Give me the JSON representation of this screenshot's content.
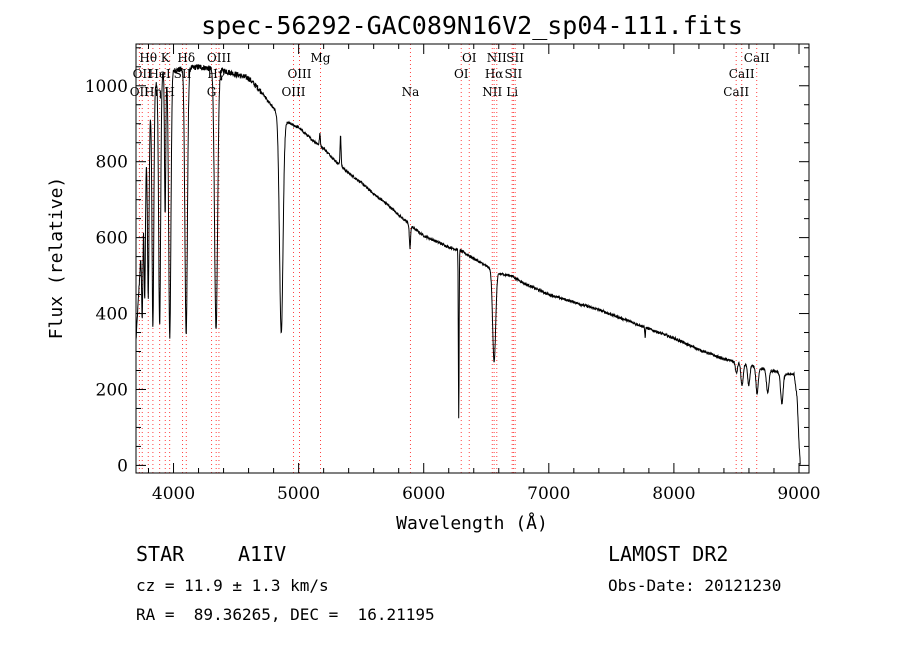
{
  "chart_data": {
    "type": "line",
    "title": "spec-56292-GAC089N16V2_sp04-111.fits",
    "xlabel": "Wavelength (Å)",
    "ylabel": "Flux (relative)",
    "xlim": [
      3700,
      9080
    ],
    "ylim": [
      -20,
      1110
    ],
    "xticks": [
      4000,
      5000,
      6000,
      7000,
      8000,
      9000
    ],
    "yticks": [
      0,
      200,
      400,
      600,
      800,
      1000
    ],
    "x_minor_step": 200,
    "y_minor_step": 50,
    "grid": false,
    "line_color": "#000000",
    "marker_color": "#ff4040",
    "spectrum": {
      "continuum": [
        [
          3700,
          330
        ],
        [
          3740,
          560
        ],
        [
          3780,
          800
        ],
        [
          3830,
          980
        ],
        [
          3900,
          1035
        ],
        [
          4000,
          1040
        ],
        [
          4100,
          1045
        ],
        [
          4200,
          1050
        ],
        [
          4300,
          1045
        ],
        [
          4400,
          1040
        ],
        [
          4500,
          1030
        ],
        [
          4600,
          1020
        ],
        [
          4700,
          985
        ],
        [
          4800,
          940
        ],
        [
          4900,
          905
        ],
        [
          5000,
          890
        ],
        [
          5100,
          860
        ],
        [
          5200,
          835
        ],
        [
          5300,
          800
        ],
        [
          5400,
          770
        ],
        [
          5500,
          745
        ],
        [
          5600,
          715
        ],
        [
          5700,
          690
        ],
        [
          5800,
          660
        ],
        [
          5900,
          630
        ],
        [
          6000,
          605
        ],
        [
          6100,
          590
        ],
        [
          6200,
          575
        ],
        [
          6300,
          565
        ],
        [
          6400,
          545
        ],
        [
          6500,
          525
        ],
        [
          6600,
          505
        ],
        [
          6700,
          500
        ],
        [
          6800,
          480
        ],
        [
          6900,
          465
        ],
        [
          7000,
          450
        ],
        [
          7200,
          430
        ],
        [
          7400,
          410
        ],
        [
          7600,
          385
        ],
        [
          7800,
          360
        ],
        [
          8000,
          335
        ],
        [
          8200,
          305
        ],
        [
          8400,
          280
        ],
        [
          8600,
          265
        ],
        [
          8700,
          255
        ],
        [
          8800,
          248
        ],
        [
          8900,
          240
        ],
        [
          8960,
          240
        ],
        [
          8985,
          180
        ],
        [
          9000,
          60
        ],
        [
          9010,
          5
        ]
      ],
      "absorption": [
        {
          "x": 3750,
          "depth": 230,
          "width": 5
        },
        {
          "x": 3770,
          "depth": 300,
          "width": 5
        },
        {
          "x": 3798,
          "depth": 420,
          "width": 6
        },
        {
          "x": 3835,
          "depth": 620,
          "width": 7
        },
        {
          "x": 3889,
          "depth": 660,
          "width": 8
        },
        {
          "x": 3933,
          "depth": 380,
          "width": 5
        },
        {
          "x": 3970,
          "depth": 700,
          "width": 9
        },
        {
          "x": 4101,
          "depth": 700,
          "width": 10
        },
        {
          "x": 4340,
          "depth": 690,
          "width": 12
        },
        {
          "x": 4861,
          "depth": 570,
          "width": 14
        },
        {
          "x": 5890,
          "depth": 60,
          "width": 5
        },
        {
          "x": 6280,
          "depth": 440,
          "width": 3
        },
        {
          "x": 6563,
          "depth": 240,
          "width": 12
        },
        {
          "x": 7770,
          "depth": 25,
          "width": 3
        },
        {
          "x": 8500,
          "depth": 30,
          "width": 8
        },
        {
          "x": 8545,
          "depth": 60,
          "width": 9
        },
        {
          "x": 8598,
          "depth": 55,
          "width": 9
        },
        {
          "x": 8665,
          "depth": 70,
          "width": 9
        },
        {
          "x": 8750,
          "depth": 60,
          "width": 10
        },
        {
          "x": 8863,
          "depth": 80,
          "width": 10
        }
      ],
      "emission": [
        {
          "x": 5335,
          "height": 80,
          "width": 4
        },
        {
          "x": 5170,
          "height": 30,
          "width": 4
        }
      ],
      "noise_amplitude": 7
    },
    "line_markers": [
      {
        "x": 3727,
        "labels": [
          {
            "text": "OII",
            "row": 3
          }
        ]
      },
      {
        "x": 3750,
        "labels": [
          {
            "text": "OII",
            "row": 2
          }
        ]
      },
      {
        "x": 3798,
        "labels": [
          {
            "text": "Hθ",
            "row": 1
          }
        ]
      },
      {
        "x": 3835,
        "labels": [
          {
            "text": "Hη",
            "row": 3
          }
        ]
      },
      {
        "x": 3889,
        "labels": [
          {
            "text": "HeI",
            "row": 2
          }
        ]
      },
      {
        "x": 3934,
        "labels": [
          {
            "text": "K",
            "row": 1
          }
        ]
      },
      {
        "x": 3969,
        "labels": [
          {
            "text": "H",
            "row": 3
          }
        ]
      },
      {
        "x": 4072,
        "labels": [
          {
            "text": "SII",
            "row": 2
          }
        ]
      },
      {
        "x": 4102,
        "labels": [
          {
            "text": "Hδ",
            "row": 1
          }
        ]
      },
      {
        "x": 4304,
        "labels": [
          {
            "text": "G",
            "row": 3
          }
        ]
      },
      {
        "x": 4341,
        "labels": [
          {
            "text": "Hγ",
            "row": 2
          }
        ]
      },
      {
        "x": 4363,
        "labels": [
          {
            "text": "OIII",
            "row": 1
          }
        ]
      },
      {
        "x": 4959,
        "labels": [
          {
            "text": "OIII",
            "row": 3
          }
        ]
      },
      {
        "x": 5007,
        "labels": [
          {
            "text": "OIII",
            "row": 2
          }
        ]
      },
      {
        "x": 5175,
        "labels": [
          {
            "text": "Mg",
            "row": 1
          }
        ]
      },
      {
        "x": 5894,
        "labels": [
          {
            "text": "Na",
            "row": 3
          }
        ]
      },
      {
        "x": 6300,
        "labels": [
          {
            "text": "OI",
            "row": 2
          }
        ]
      },
      {
        "x": 6364,
        "labels": [
          {
            "text": "OI",
            "row": 1
          }
        ]
      },
      {
        "x": 6548,
        "labels": [
          {
            "text": "NII",
            "row": 3
          }
        ]
      },
      {
        "x": 6563,
        "labels": [
          {
            "text": "Hα",
            "row": 2
          }
        ]
      },
      {
        "x": 6584,
        "labels": [
          {
            "text": "NII",
            "row": 1
          }
        ]
      },
      {
        "x": 6707,
        "labels": [
          {
            "text": "Li",
            "row": 3
          }
        ]
      },
      {
        "x": 6717,
        "labels": [
          {
            "text": "SII",
            "row": 2
          }
        ]
      },
      {
        "x": 6731,
        "labels": [
          {
            "text": "SII",
            "row": 1
          }
        ]
      },
      {
        "x": 8498,
        "labels": [
          {
            "text": "CaII",
            "row": 3
          }
        ]
      },
      {
        "x": 8542,
        "labels": [
          {
            "text": "CaII",
            "row": 2
          }
        ]
      },
      {
        "x": 8662,
        "labels": [
          {
            "text": "CaII",
            "row": 1
          }
        ]
      }
    ]
  },
  "info": {
    "class": "STAR",
    "subclass": "A1IV",
    "survey": "LAMOST DR2",
    "cz": "cz = 11.9 ± 1.3 km/s",
    "obsdate": "Obs-Date: 20121230",
    "radec": "RA =  89.36265, DEC =  16.21195"
  }
}
